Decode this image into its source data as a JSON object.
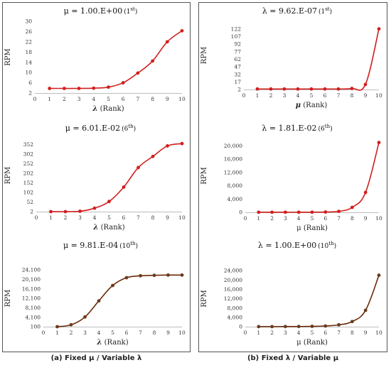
{
  "captions": {
    "a": "(a) Fixed μ / Variable λ",
    "b": "(b) Fixed λ / Variable μ"
  },
  "colors": {
    "red": "#d11f1f",
    "brown": "#6b2a0a",
    "marker_brown": "#6b3a1f"
  },
  "chart_data": [
    {
      "type": "line",
      "title": "μ = 1.00.E+00",
      "title_suffix": "(1",
      "title_sup": "st",
      "title_end": ")",
      "xlabel_prefix": "λ",
      "xlabel": " (Rank)",
      "ylabel": "RPM",
      "x": [
        1,
        2,
        3,
        4,
        5,
        6,
        7,
        8,
        9,
        10
      ],
      "xticks": [
        0,
        1,
        2,
        3,
        4,
        5,
        6,
        7,
        8,
        9,
        10
      ],
      "xlim": [
        0,
        10
      ],
      "ylim": [
        2,
        30
      ],
      "yticks": [
        2,
        6,
        10,
        14,
        18,
        22,
        26,
        30
      ],
      "ytick_labels": [
        "2",
        "6",
        "10",
        "14",
        "18",
        "22",
        "26",
        "30"
      ],
      "values": [
        3.8,
        3.8,
        3.8,
        3.9,
        4.3,
        6,
        9.8,
        14.5,
        22,
        26.3
      ],
      "color": "red"
    },
    {
      "type": "line",
      "title": "λ = 9.62.E-07",
      "title_suffix": "(1",
      "title_sup": "st",
      "title_end": ")",
      "xlabel_prefix": "μ",
      "xlabel": " (Rank)",
      "ylabel": "RPM",
      "x": [
        1,
        2,
        3,
        4,
        5,
        6,
        7,
        8,
        9,
        10
      ],
      "xticks": [
        0,
        1,
        2,
        3,
        4,
        5,
        6,
        7,
        8,
        9,
        10
      ],
      "xlim": [
        0,
        10
      ],
      "ylim": [
        2,
        137
      ],
      "yticks": [
        2,
        17,
        32,
        47,
        62,
        77,
        92,
        107,
        122
      ],
      "ytick_labels": [
        "2",
        "17",
        "32",
        "47",
        "62",
        "77",
        "92",
        "107",
        "122"
      ],
      "values": [
        3,
        3,
        3,
        3,
        3,
        3,
        3,
        4,
        12,
        122
      ],
      "color": "red"
    },
    {
      "type": "line",
      "title": "μ = 6.01.E-02",
      "title_suffix": "(6",
      "title_sup": "th",
      "title_end": ")",
      "xlabel_prefix": "λ",
      "xlabel": " (Rank)",
      "ylabel": "RPM",
      "x": [
        1,
        2,
        3,
        4,
        5,
        6,
        7,
        8,
        9,
        10
      ],
      "xticks": [
        0,
        1,
        2,
        3,
        4,
        5,
        6,
        7,
        8,
        9,
        10
      ],
      "xlim": [
        0,
        10
      ],
      "ylim": [
        2,
        380
      ],
      "yticks": [
        2,
        52,
        102,
        152,
        202,
        252,
        302,
        352
      ],
      "ytick_labels": [
        "2",
        "52",
        "102",
        "152",
        "202",
        "252",
        "302",
        "352"
      ],
      "values": [
        2,
        2,
        4,
        20,
        55,
        130,
        232,
        290,
        345,
        357
      ],
      "color": "red"
    },
    {
      "type": "line",
      "title": "λ = 1.81.E-02",
      "title_suffix": "(6",
      "title_sup": "th",
      "title_end": ")",
      "xlabel_prefix": "",
      "xlabel": "μ (Rank)",
      "ylabel": "RPM",
      "x": [
        1,
        2,
        3,
        4,
        5,
        6,
        7,
        8,
        9,
        10
      ],
      "xticks": [
        0,
        1,
        2,
        3,
        4,
        5,
        6,
        7,
        8,
        9,
        10
      ],
      "xlim": [
        0,
        10
      ],
      "ylim": [
        0,
        22000
      ],
      "yticks": [
        0,
        4000,
        8000,
        12000,
        16000,
        20000
      ],
      "ytick_labels": [
        "0",
        "4,000",
        "8,000",
        "12,000",
        "16,000",
        "20,000"
      ],
      "values": [
        30,
        30,
        30,
        30,
        50,
        100,
        300,
        1500,
        6000,
        21000
      ],
      "color": "red"
    },
    {
      "type": "line",
      "title": "μ = 9.81.E-04",
      "title_suffix": "(10",
      "title_sup": "th",
      "title_end": ")",
      "xlabel_prefix": "λ",
      "xlabel": " (Rank)",
      "ylabel": "RPM",
      "x": [
        1,
        2,
        3,
        4,
        5,
        6,
        7,
        8,
        9,
        10
      ],
      "xticks": [
        0,
        1,
        2,
        3,
        4,
        5,
        6,
        7,
        8,
        9,
        10
      ],
      "xlim": [
        0,
        10
      ],
      "ylim": [
        100,
        24100
      ],
      "yticks": [
        100,
        4100,
        8100,
        12100,
        16100,
        20100,
        24100
      ],
      "ytick_labels": [
        "100",
        "4,100",
        "8,100",
        "12,100",
        "16,100",
        "20,100",
        "24,100"
      ],
      "values": [
        100,
        900,
        4200,
        11000,
        17500,
        20800,
        21600,
        21800,
        21900,
        21900
      ],
      "color": "brown"
    },
    {
      "type": "line",
      "title": "λ = 1.00.E+00",
      "title_suffix": "(10",
      "title_sup": "th",
      "title_end": ")",
      "xlabel_prefix": "",
      "xlabel": "μ (Rank)",
      "ylabel": "RPM",
      "x": [
        1,
        2,
        3,
        4,
        5,
        6,
        7,
        8,
        9,
        10
      ],
      "xticks": [
        0,
        1,
        2,
        3,
        4,
        5,
        6,
        7,
        8,
        9,
        10
      ],
      "xlim": [
        0,
        10
      ],
      "ylim": [
        0,
        24000
      ],
      "yticks": [
        0,
        4000,
        8000,
        12000,
        16000,
        20000,
        24000
      ],
      "ytick_labels": [
        "0",
        "4,000",
        "8,000",
        "12,000",
        "16,000",
        "20,000",
        "24,000"
      ],
      "values": [
        30,
        30,
        50,
        80,
        150,
        300,
        800,
        2200,
        7000,
        22000
      ],
      "color": "brown"
    }
  ]
}
